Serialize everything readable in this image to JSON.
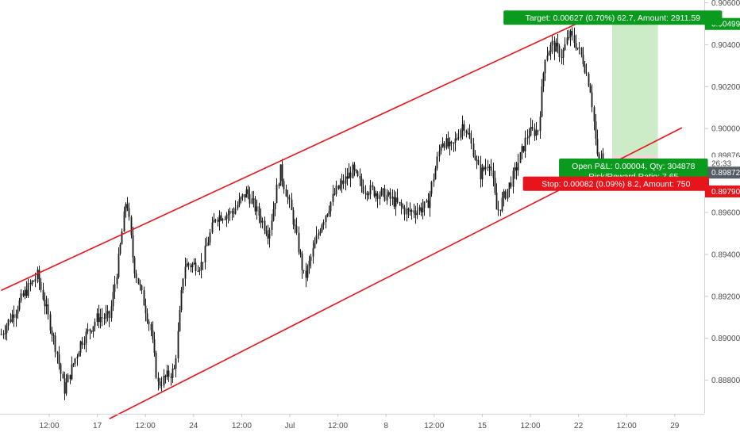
{
  "chart_data": {
    "type": "candlestick",
    "x_tick_labels": [
      "12:00",
      "17",
      "12:00",
      "24",
      "12:00",
      "Jul",
      "12:00",
      "8",
      "12:00",
      "15",
      "12:00",
      "22",
      "12:00",
      "29"
    ],
    "y_tick_labels": [
      "0.90600",
      "0.90400",
      "0.90200",
      "0.90000",
      "0.89800",
      "0.89600",
      "0.89400",
      "0.89200",
      "0.89000",
      "0.88800"
    ],
    "ylim": [
      0.8862,
      0.9062
    ],
    "grid": false,
    "price_path": [
      {
        "x": 0.0,
        "y": 0.8902
      },
      {
        "x": 1.0,
        "y": 0.8922
      },
      {
        "x": 1.5,
        "y": 0.893
      },
      {
        "x": 2.3,
        "y": 0.8894
      },
      {
        "x": 2.6,
        "y": 0.8875
      },
      {
        "x": 3.3,
        "y": 0.8898
      },
      {
        "x": 4.0,
        "y": 0.891
      },
      {
        "x": 4.5,
        "y": 0.891
      },
      {
        "x": 4.9,
        "y": 0.894
      },
      {
        "x": 5.2,
        "y": 0.8968
      },
      {
        "x": 5.5,
        "y": 0.8935
      },
      {
        "x": 6.2,
        "y": 0.8905
      },
      {
        "x": 6.5,
        "y": 0.8878
      },
      {
        "x": 7.2,
        "y": 0.8885
      },
      {
        "x": 7.6,
        "y": 0.8935
      },
      {
        "x": 8.3,
        "y": 0.8935
      },
      {
        "x": 8.9,
        "y": 0.8958
      },
      {
        "x": 9.6,
        "y": 0.896
      },
      {
        "x": 10.2,
        "y": 0.897
      },
      {
        "x": 11.1,
        "y": 0.895
      },
      {
        "x": 11.6,
        "y": 0.898
      },
      {
        "x": 12.1,
        "y": 0.8958
      },
      {
        "x": 12.6,
        "y": 0.8928
      },
      {
        "x": 13.3,
        "y": 0.8955
      },
      {
        "x": 13.9,
        "y": 0.897
      },
      {
        "x": 14.6,
        "y": 0.898
      },
      {
        "x": 15.0,
        "y": 0.8972
      },
      {
        "x": 16.0,
        "y": 0.8968
      },
      {
        "x": 16.9,
        "y": 0.896
      },
      {
        "x": 17.7,
        "y": 0.8963
      },
      {
        "x": 18.3,
        "y": 0.8995
      },
      {
        "x": 18.7,
        "y": 0.899
      },
      {
        "x": 19.2,
        "y": 0.9003
      },
      {
        "x": 19.6,
        "y": 0.899
      },
      {
        "x": 19.9,
        "y": 0.8978
      },
      {
        "x": 20.3,
        "y": 0.8985
      },
      {
        "x": 20.6,
        "y": 0.896
      },
      {
        "x": 21.3,
        "y": 0.8978
      },
      {
        "x": 21.9,
        "y": 0.8998
      },
      {
        "x": 22.3,
        "y": 0.8999
      },
      {
        "x": 22.6,
        "y": 0.9035
      },
      {
        "x": 22.9,
        "y": 0.904
      },
      {
        "x": 23.3,
        "y": 0.9035
      },
      {
        "x": 23.6,
        "y": 0.9045
      },
      {
        "x": 23.9,
        "y": 0.904
      },
      {
        "x": 24.2,
        "y": 0.9032
      },
      {
        "x": 24.5,
        "y": 0.9018
      },
      {
        "x": 24.8,
        "y": 0.8983
      },
      {
        "x": 25.0,
        "y": 0.8987
      }
    ],
    "channel": {
      "upper": {
        "from": {
          "x": 0.0,
          "y": 0.89228
        },
        "to": {
          "x": 24.0,
          "y": 0.90504
        }
      },
      "lower": {
        "from": {
          "x": 4.5,
          "y": 0.88616
        },
        "to": {
          "x": 28.3,
          "y": 0.90004
        }
      }
    },
    "position": {
      "type": "long",
      "x_from": 25.4,
      "x_to": 27.3,
      "entry": 0.89872,
      "target": 0.90499,
      "stop": 0.8979,
      "target_label": "Target: 0.00627 (0.70%) 62.7, Amount: 2911.59",
      "open_label_line1": "Open P&L: 0.00004, Qty: 304878",
      "open_label_line2": "Risk/Reward Ratio: 7.65",
      "stop_label": "Stop: 0.00082 (0.09%) 8.2, Amount: 750"
    },
    "price_markers": [
      {
        "label": "0.90499",
        "value": 0.90499,
        "color": "#0a9a1e"
      },
      {
        "label": "0.89876",
        "value": 0.89872,
        "color": "#ffffff"
      },
      {
        "label": "26:33",
        "value": 0.89835,
        "color": "#ffffff"
      },
      {
        "label": "0.89872",
        "value": 0.8979,
        "color": "#555d66"
      },
      {
        "label": "0.89790",
        "value": 0.897,
        "color": "#e8141c"
      }
    ],
    "colors": {
      "channel": "#e8141c",
      "candles": "#1a1a1a",
      "profit_zone": "#b9e6b4",
      "loss_zone": "#f6c8c8",
      "target_box": "#0a9a1e",
      "stop_box": "#e8141c"
    }
  }
}
